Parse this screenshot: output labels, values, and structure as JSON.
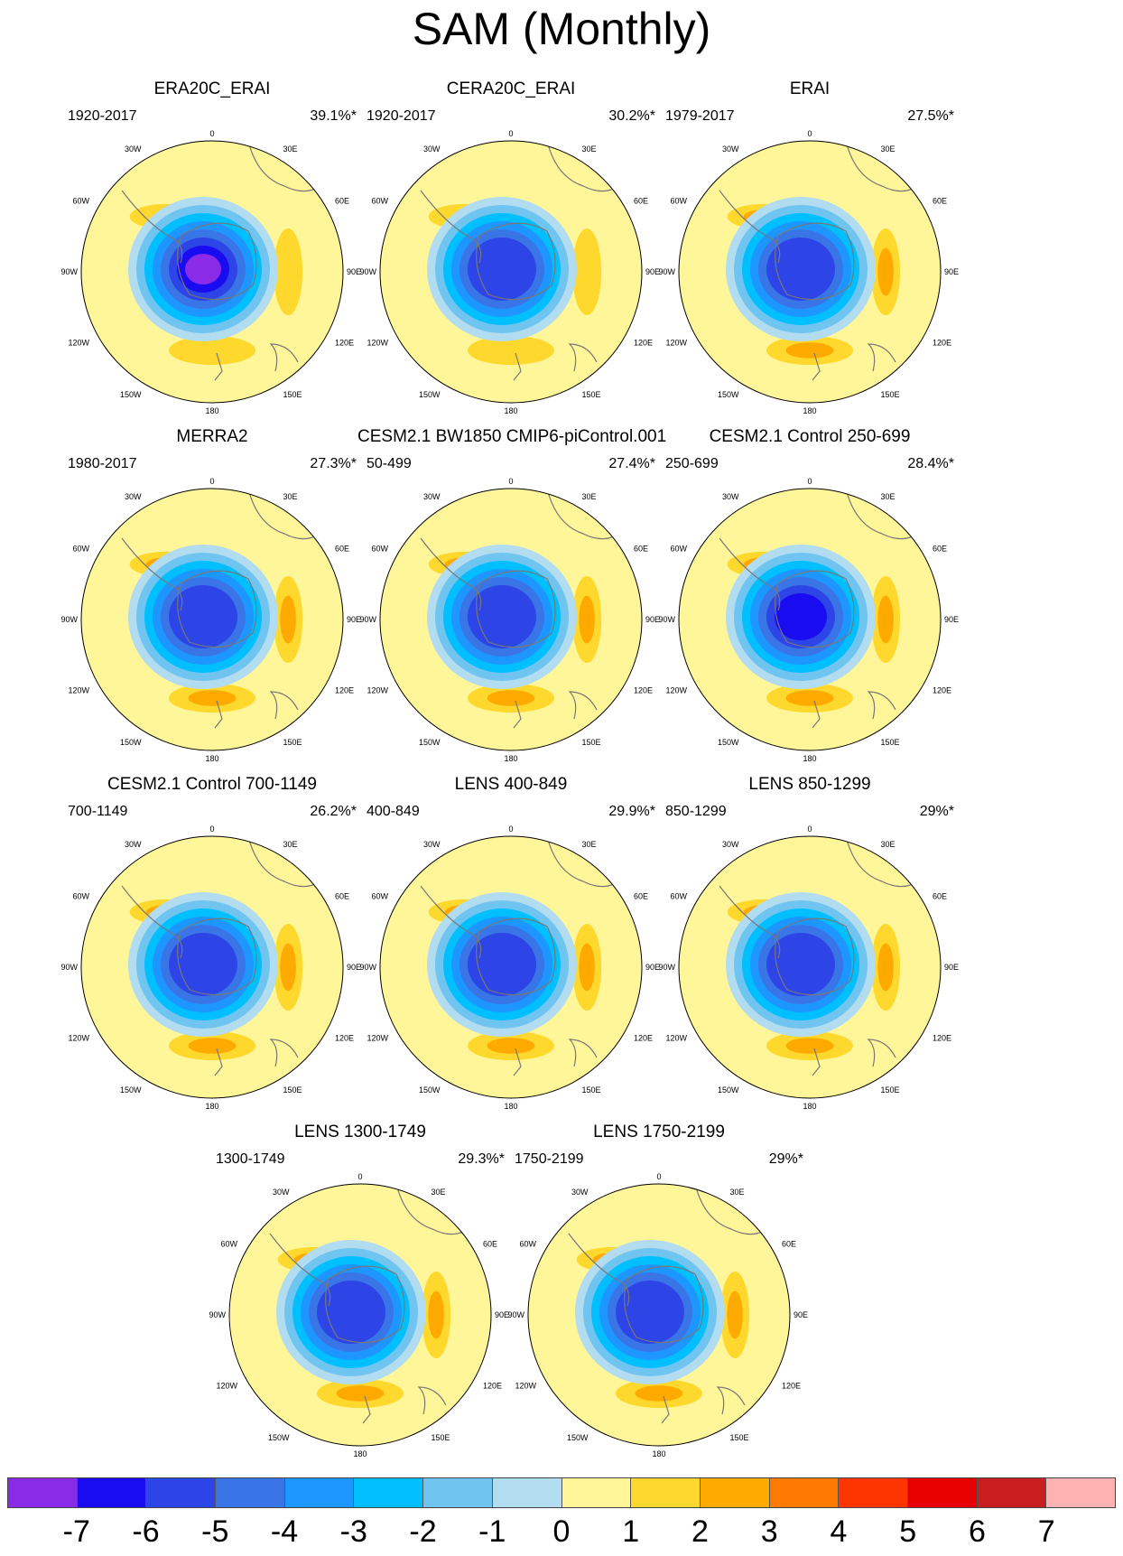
{
  "figure": {
    "title": "SAM (Monthly)"
  },
  "lon_labels": {
    "top": "0",
    "e30": "30E",
    "e60": "60E",
    "e90": "90E",
    "e120": "120E",
    "e150": "150E",
    "bottom": "180",
    "w150": "150W",
    "w120": "120W",
    "w90": "90W",
    "w60": "60W",
    "w30": "30W"
  },
  "panels": [
    {
      "title": "ERA20C_ERAI",
      "range": "1920-2017",
      "pct": "39.1%*",
      "min_level": -7,
      "max_level": 1
    },
    {
      "title": "CERA20C_ERAI",
      "range": "1920-2017",
      "pct": "30.2%*",
      "min_level": -5,
      "max_level": 1
    },
    {
      "title": "ERAI",
      "range": "1979-2017",
      "pct": "27.5%*",
      "min_level": -5,
      "max_level": 2
    },
    {
      "title": "MERRA2",
      "range": "1980-2017",
      "pct": "27.3%*",
      "min_level": -5,
      "max_level": 2
    },
    {
      "title": "CESM2.1 BW1850 CMIP6-piControl.001",
      "range": "50-499",
      "pct": "27.4%*",
      "min_level": -5,
      "max_level": 2
    },
    {
      "title": "CESM2.1 Control 250-699",
      "range": "250-699",
      "pct": "28.4%*",
      "min_level": -6,
      "max_level": 2
    },
    {
      "title": "CESM2.1 Control 700-1149",
      "range": "700-1149",
      "pct": "26.2%*",
      "min_level": -5,
      "max_level": 2
    },
    {
      "title": "LENS 400-849",
      "range": "400-849",
      "pct": "29.9%*",
      "min_level": -5,
      "max_level": 2
    },
    {
      "title": "LENS 850-1299",
      "range": "850-1299",
      "pct": "29%*",
      "min_level": -5,
      "max_level": 2
    },
    {
      "title": "LENS 1300-1749",
      "range": "1300-1749",
      "pct": "29.3%*",
      "min_level": -5,
      "max_level": 2
    },
    {
      "title": "LENS 1750-2199",
      "range": "1750-2199",
      "pct": "29%*",
      "min_level": -5,
      "max_level": 2
    }
  ],
  "colorbar": {
    "colors": [
      "#8a2be8",
      "#1a0cf0",
      "#2d45e6",
      "#3a75e8",
      "#1e96ff",
      "#00bfff",
      "#70c4f0",
      "#b2dcf0",
      "#fff69a",
      "#ffd82e",
      "#ffaa00",
      "#ff7a00",
      "#ff3500",
      "#e60000",
      "#c81e1e",
      "#ffb2b2"
    ],
    "labels": [
      "-7",
      "-6",
      "-5",
      "-4",
      "-3",
      "-2",
      "-1",
      "0",
      "1",
      "2",
      "3",
      "4",
      "5",
      "6",
      "7"
    ]
  }
}
